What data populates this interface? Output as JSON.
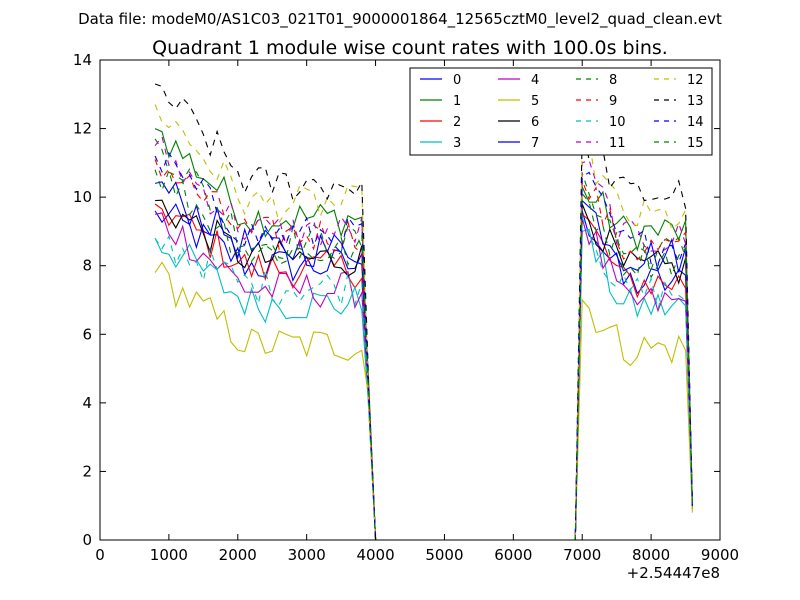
{
  "suptitle": "Data file: modeM0/AS1C03_021T01_9000001864_12565cztM0_level2_quad_clean.evt",
  "chart_data": {
    "type": "line",
    "title": "Quadrant 1 module wise count rates with 100.0s bins.",
    "xlabel": "",
    "ylabel": "",
    "x_offset_label": "+2.54447e8",
    "xlim": [
      0,
      9000
    ],
    "ylim": [
      0,
      14
    ],
    "xticks": [
      0,
      1000,
      2000,
      3000,
      4000,
      5000,
      6000,
      7000,
      8000,
      9000
    ],
    "yticks": [
      0,
      2,
      4,
      6,
      8,
      10,
      12,
      14
    ],
    "grid": false,
    "legend_position": "top-right",
    "legend_columns": 4,
    "segments": [
      {
        "x_start": 800,
        "x_end": 3800,
        "step": 100
      },
      {
        "x_start": 7000,
        "x_end": 8500,
        "step": 100
      }
    ],
    "drop": {
      "seg1_end_points": [
        [
          3900,
          4.5
        ],
        [
          4000,
          0
        ]
      ],
      "zero_span": [
        4000,
        6900
      ],
      "seg2_start_point": [
        6900,
        0
      ],
      "final_point_x": 8600
    },
    "series": [
      {
        "name": "0",
        "color": "#0000ff",
        "dash": "solid",
        "level1": 8.0,
        "level2": 7.5,
        "start": 9.6,
        "peak2": 9.6,
        "end": 1.0
      },
      {
        "name": "1",
        "color": "#008000",
        "dash": "solid",
        "level1": 9.4,
        "level2": 9.0,
        "start": 12.0,
        "peak2": 10.3,
        "end": 0.9
      },
      {
        "name": "2",
        "color": "#ff0000",
        "dash": "solid",
        "level1": 7.9,
        "level2": 7.5,
        "start": 9.8,
        "peak2": 9.5,
        "end": 1.0
      },
      {
        "name": "3",
        "color": "#00bfbf",
        "dash": "solid",
        "level1": 6.9,
        "level2": 6.8,
        "start": 8.8,
        "peak2": 9.0,
        "end": 1.0
      },
      {
        "name": "4",
        "color": "#bf00bf",
        "dash": "solid",
        "level1": 7.3,
        "level2": 6.9,
        "start": 9.5,
        "peak2": 9.4,
        "end": 1.0
      },
      {
        "name": "5",
        "color": "#bfbf00",
        "dash": "solid",
        "level1": 5.7,
        "level2": 5.6,
        "start": 7.8,
        "peak2": 7.0,
        "end": 0.8
      },
      {
        "name": "6",
        "color": "#000000",
        "dash": "solid",
        "level1": 8.2,
        "level2": 7.9,
        "start": 9.9,
        "peak2": 9.8,
        "end": 1.0
      },
      {
        "name": "7",
        "color": "#0000ff",
        "dash": "solid",
        "level1": 8.5,
        "level2": 8.3,
        "start": 10.4,
        "peak2": 9.9,
        "end": 1.0
      },
      {
        "name": "8",
        "color": "#008000",
        "dash": "dashed",
        "level1": 8.7,
        "level2": 8.4,
        "start": 11.7,
        "peak2": 10.7,
        "end": 1.0
      },
      {
        "name": "9",
        "color": "#ff0000",
        "dash": "dashed",
        "level1": 8.9,
        "level2": 8.5,
        "start": 11.1,
        "peak2": 10.5,
        "end": 1.0
      },
      {
        "name": "10",
        "color": "#00bfbf",
        "dash": "dashed",
        "level1": 7.4,
        "level2": 7.2,
        "start": 8.8,
        "peak2": 9.4,
        "end": 1.0
      },
      {
        "name": "11",
        "color": "#bf00bf",
        "dash": "dashed",
        "level1": 9.0,
        "level2": 8.8,
        "start": 11.5,
        "peak2": 11.0,
        "end": 1.0
      },
      {
        "name": "12",
        "color": "#bfbf00",
        "dash": "dashed",
        "level1": 9.8,
        "level2": 9.4,
        "start": 12.7,
        "peak2": 11.5,
        "end": 1.0
      },
      {
        "name": "13",
        "color": "#000000",
        "dash": "dashed",
        "level1": 10.4,
        "level2": 10.1,
        "start": 13.3,
        "peak2": 11.9,
        "end": 1.0
      },
      {
        "name": "14",
        "color": "#0000ff",
        "dash": "dashed",
        "level1": 8.9,
        "level2": 8.6,
        "start": 11.2,
        "peak2": 10.6,
        "end": 1.0
      },
      {
        "name": "15",
        "color": "#008000",
        "dash": "dashed",
        "level1": 8.4,
        "level2": 8.2,
        "start": 10.8,
        "peak2": 10.1,
        "end": 1.0
      }
    ]
  }
}
